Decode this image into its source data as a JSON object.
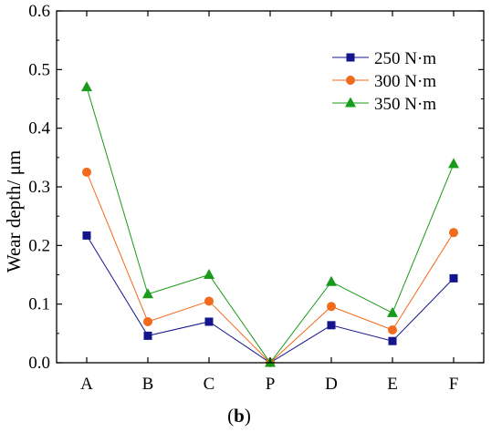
{
  "chart_data": {
    "type": "line",
    "categories": [
      "A",
      "B",
      "C",
      "P",
      "D",
      "E",
      "F"
    ],
    "xlabel": "",
    "ylabel": "Wear depth/ μm",
    "ylim": [
      0,
      0.6
    ],
    "yticks": [
      "0.0",
      "0.1",
      "0.2",
      "0.3",
      "0.4",
      "0.5",
      "0.6"
    ],
    "grid": false,
    "legend_position": "top-right",
    "caption": {
      "open": "(",
      "letter": "b",
      "close": ")"
    },
    "series": [
      {
        "name": "250 N·m",
        "color": "#14148c",
        "marker": "square",
        "values": [
          0.217,
          0.046,
          0.07,
          0.0,
          0.064,
          0.037,
          0.144
        ]
      },
      {
        "name": "300 N·m",
        "color": "#f26a1b",
        "marker": "circle",
        "values": [
          0.325,
          0.07,
          0.105,
          0.0,
          0.096,
          0.056,
          0.222
        ]
      },
      {
        "name": "350 N·m",
        "color": "#1a9a1a",
        "marker": "triangle",
        "values": [
          0.47,
          0.117,
          0.15,
          0.0,
          0.138,
          0.085,
          0.339
        ]
      }
    ]
  }
}
